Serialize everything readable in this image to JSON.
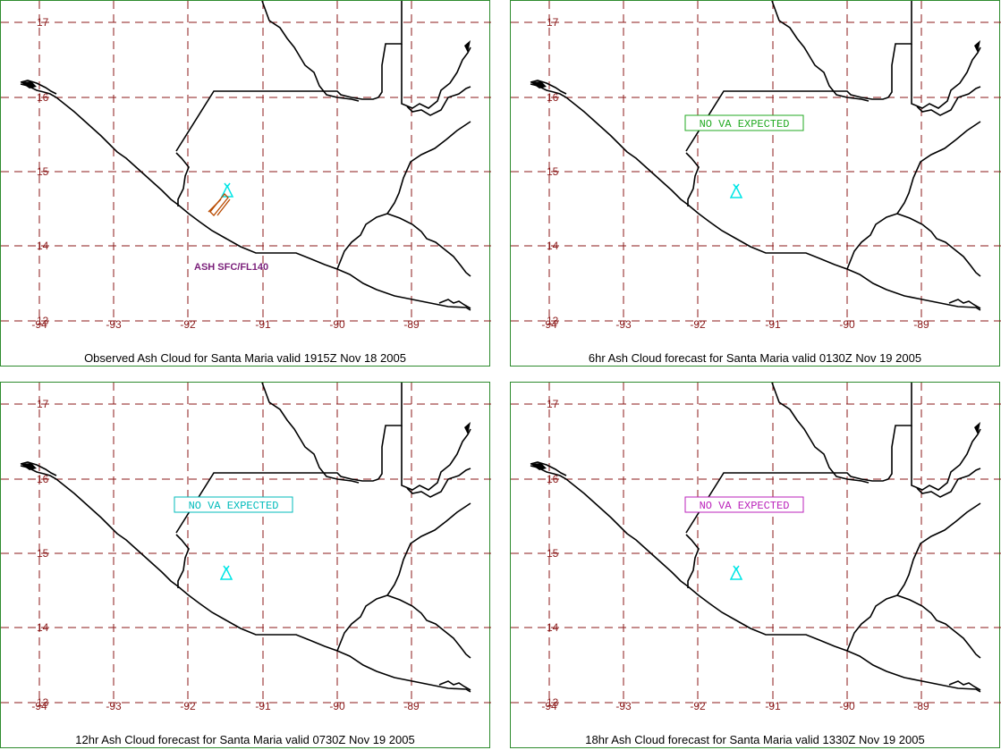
{
  "grid": {
    "lat_labels": [
      "17",
      "16",
      "15",
      "14",
      "13"
    ],
    "lon_labels": [
      "-94",
      "-93",
      "-92",
      "-91",
      "-90",
      "-89"
    ],
    "grid_color": "#8b1a1a",
    "frame_color": "#2e8b2e"
  },
  "volcano": {
    "icon": "volcano-triangle-icon",
    "color": "#00e5e5"
  },
  "panels": [
    {
      "caption": "Observed Ash Cloud for Santa  Maria valid 1915Z Nov 18 2005",
      "label": "ASH SFC/FL140",
      "label_color": "#7a1f7a",
      "label_boxed": false,
      "ash_color": "#b84a00",
      "has_ash": true
    },
    {
      "caption": "6hr Ash Cloud forecast for Santa  Maria valid 0130Z Nov 19 2005",
      "label": "NO VA EXPECTED",
      "label_color": "#22aa22",
      "label_boxed": true,
      "has_ash": false
    },
    {
      "caption": "12hr Ash Cloud forecast for Santa  Maria valid 0730Z Nov 19 2005",
      "label": "NO VA EXPECTED",
      "label_color": "#00bbbb",
      "label_boxed": true,
      "has_ash": false
    },
    {
      "caption": "18hr Ash Cloud forecast for Santa  Maria valid 1330Z Nov 19 2005",
      "label": "NO VA EXPECTED",
      "label_color": "#bb22bb",
      "label_boxed": true,
      "has_ash": false
    }
  ]
}
